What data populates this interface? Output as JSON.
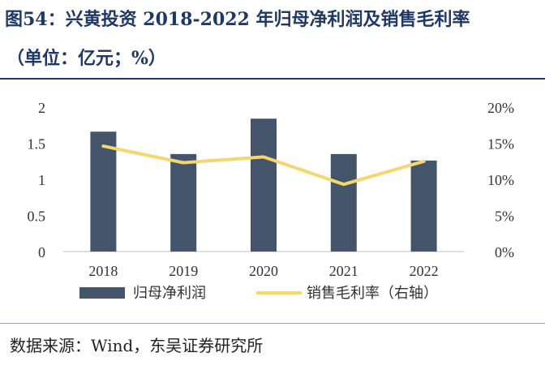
{
  "figure": {
    "title_line1": "图54：兴黄投资 2018-2022 年归母净利润及销售毛利率",
    "title_line2": "（单位：亿元；%）",
    "source": "数据来源：Wind，东吴证券研究所"
  },
  "colors": {
    "bar": "#44546a",
    "line": "#f5d76e",
    "title": "#1f3864",
    "axis_text": "#333333"
  },
  "chart_data": {
    "type": "bar",
    "categories": [
      "2018",
      "2019",
      "2020",
      "2021",
      "2022"
    ],
    "series": [
      {
        "name": "归母净利润",
        "type": "bar",
        "axis": "left",
        "values": [
          1.66,
          1.35,
          1.84,
          1.35,
          1.26
        ]
      },
      {
        "name": "销售毛利率（右轴）",
        "type": "line",
        "axis": "right",
        "values": [
          14.6,
          12.3,
          13.1,
          9.3,
          12.5
        ]
      }
    ],
    "ylim_left": [
      0,
      2
    ],
    "ylim_right": [
      0,
      20
    ],
    "yticks_left": [
      "0",
      "0.5",
      "1",
      "1.5",
      "2"
    ],
    "yticks_right": [
      "0%",
      "5%",
      "10%",
      "15%",
      "20%"
    ],
    "grid": false,
    "legend_position": "bottom"
  }
}
